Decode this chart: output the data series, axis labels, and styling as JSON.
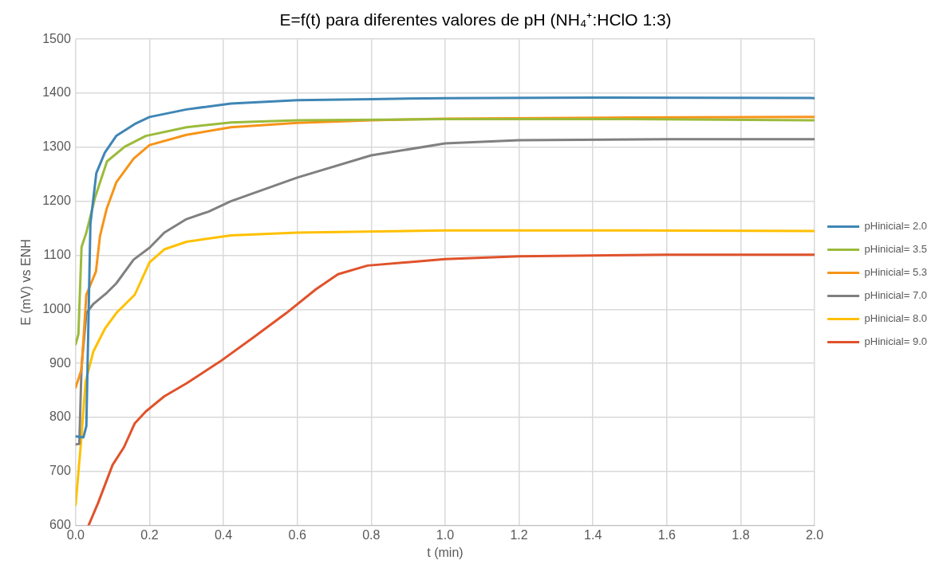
{
  "chart_data": {
    "type": "line",
    "title": "E=f(t) para diferentes valores de pH (NH₄⁺:HClO 1:3)",
    "xlabel": "t (min)",
    "ylabel": "E (mV) vs ENH",
    "xlim": [
      0,
      2
    ],
    "xticks": [
      {
        "value": 0,
        "label": "0.0"
      },
      {
        "value": 0.2,
        "label": "0.2"
      },
      {
        "value": 0.4,
        "label": "0.4"
      },
      {
        "value": 0.6,
        "label": "0.6"
      },
      {
        "value": 0.8,
        "label": "0.8"
      },
      {
        "value": 1,
        "label": "1.0"
      },
      {
        "value": 1.2,
        "label": "1.2"
      },
      {
        "value": 1.4,
        "label": "1.4"
      },
      {
        "value": 1.6,
        "label": "1.6"
      },
      {
        "value": 1.8,
        "label": "1.8"
      },
      {
        "value": 2,
        "label": "2.0"
      }
    ],
    "ylim": [
      600,
      1500
    ],
    "yticks": [
      600,
      700,
      800,
      900,
      1000,
      1100,
      1200,
      1300,
      1400,
      1500
    ],
    "grid": true,
    "legend": "right",
    "marker": "none",
    "line_style": "solid",
    "series": [
      {
        "name": "pHinicial= 2.0",
        "color": "#3f86b5",
        "x": [
          0,
          0.021,
          0.029,
          0.04,
          0.056,
          0.079,
          0.11,
          0.16,
          0.2,
          0.3,
          0.42,
          0.6,
          0.8,
          1.0,
          1.4,
          2.0
        ],
        "values": [
          765,
          763,
          784,
          1158,
          1252,
          1290,
          1321,
          1343,
          1356,
          1370,
          1381,
          1387,
          1389,
          1391,
          1392,
          1391
        ]
      },
      {
        "name": "pHinicial= 3.5",
        "color": "#9bbb3b",
        "x": [
          0,
          0.0075,
          0.016,
          0.029,
          0.053,
          0.085,
          0.133,
          0.19,
          0.3,
          0.42,
          0.6,
          1.0,
          1.5,
          2.0
        ],
        "values": [
          935,
          954,
          1115,
          1142,
          1208,
          1274,
          1301,
          1321,
          1337,
          1346,
          1350,
          1352,
          1352,
          1350
        ]
      },
      {
        "name": "pHinicial= 5.3",
        "color": "#f79318",
        "x": [
          0,
          0.016,
          0.029,
          0.055,
          0.066,
          0.084,
          0.11,
          0.157,
          0.2,
          0.3,
          0.42,
          0.6,
          0.8,
          1.0,
          1.5,
          2.0
        ],
        "values": [
          855,
          889,
          1027,
          1070,
          1136,
          1186,
          1235,
          1279,
          1304,
          1323,
          1337,
          1345,
          1350,
          1353,
          1355,
          1356
        ]
      },
      {
        "name": "pHinicial= 7.0",
        "color": "#808080",
        "x": [
          0,
          0.01,
          0.016,
          0.029,
          0.048,
          0.085,
          0.11,
          0.157,
          0.2,
          0.24,
          0.3,
          0.36,
          0.42,
          0.6,
          0.8,
          1.0,
          1.2,
          1.6,
          2.0
        ],
        "values": [
          750,
          751,
          894,
          993,
          1010,
          1031,
          1048,
          1092,
          1114,
          1142,
          1167,
          1181,
          1200,
          1244,
          1285,
          1307,
          1313,
          1315,
          1315
        ]
      },
      {
        "name": "pHinicial= 8.0",
        "color": "#ffc000",
        "x": [
          0,
          0.008,
          0.015,
          0.027,
          0.048,
          0.08,
          0.11,
          0.16,
          0.2,
          0.24,
          0.3,
          0.42,
          0.6,
          1.0,
          1.5,
          2.0
        ],
        "values": [
          638,
          702,
          757,
          866,
          922,
          965,
          993,
          1027,
          1087,
          1111,
          1125,
          1137,
          1142,
          1146,
          1146,
          1145
        ]
      },
      {
        "name": "pHinicial= 9.0",
        "color": "#e0522b",
        "x": [
          0.035,
          0.061,
          0.1,
          0.131,
          0.16,
          0.19,
          0.24,
          0.3,
          0.39,
          0.485,
          0.57,
          0.65,
          0.71,
          0.79,
          1.0,
          1.2,
          1.6,
          2.0
        ],
        "values": [
          600,
          642,
          712,
          745,
          789,
          811,
          839,
          863,
          903,
          950,
          993,
          1037,
          1065,
          1081,
          1093,
          1098,
          1101,
          1101
        ]
      }
    ]
  }
}
